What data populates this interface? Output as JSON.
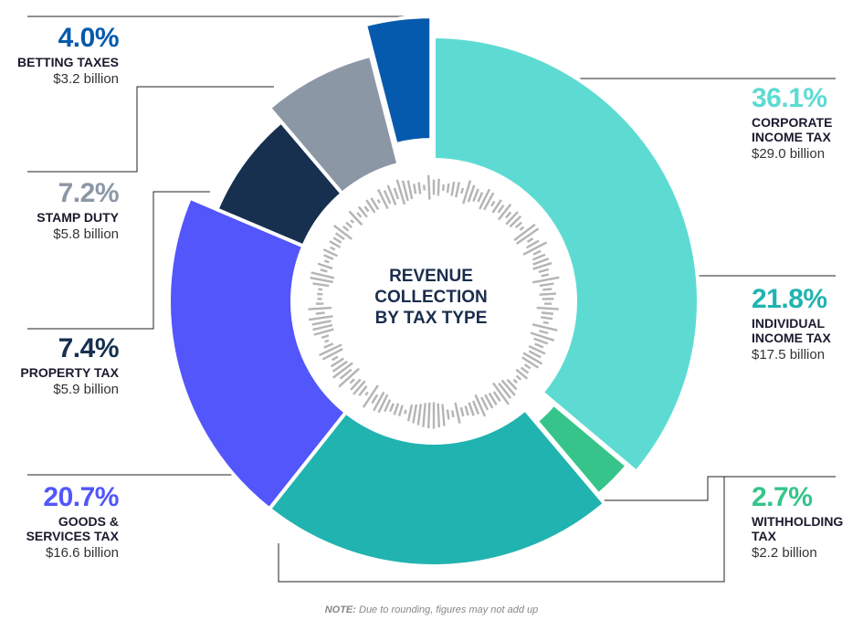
{
  "chart_data": {
    "type": "pie",
    "variant": "donut",
    "center_title_lines": [
      "REVENUE",
      "COLLECTION",
      "BY TAX TYPE"
    ],
    "slices": [
      {
        "key": "corporate",
        "percent": 36.1,
        "percent_label": "36.1%",
        "name_lines": [
          "CORPORATE",
          "INCOME TAX"
        ],
        "amount": 29.0,
        "amount_label": "$29.0 billion",
        "color": "#5ddbd3"
      },
      {
        "key": "withholding",
        "percent": 2.7,
        "percent_label": "2.7%",
        "name_lines": [
          "WITHHOLDING",
          "TAX"
        ],
        "amount": 2.2,
        "amount_label": "$2.2 billion",
        "color": "#36c48a"
      },
      {
        "key": "individual",
        "percent": 21.8,
        "percent_label": "21.8%",
        "name_lines": [
          "INDIVIDUAL",
          "INCOME TAX"
        ],
        "amount": 17.5,
        "amount_label": "$17.5 billion",
        "color": "#21b3b0"
      },
      {
        "key": "gst",
        "percent": 20.7,
        "percent_label": "20.7%",
        "name_lines": [
          "GOODS &",
          "SERVICES TAX"
        ],
        "amount": 16.6,
        "amount_label": "$16.6 billion",
        "color": "#5256fb"
      },
      {
        "key": "property",
        "percent": 7.4,
        "percent_label": "7.4%",
        "name_lines": [
          "PROPERTY TAX"
        ],
        "amount": 5.9,
        "amount_label": "$5.9 billion",
        "color": "#17304f"
      },
      {
        "key": "stamp",
        "percent": 7.2,
        "percent_label": "7.2%",
        "name_lines": [
          "STAMP DUTY"
        ],
        "amount": 5.8,
        "amount_label": "$5.8 billion",
        "color": "#8c97a6"
      },
      {
        "key": "betting",
        "percent": 4.0,
        "percent_label": "4.0%",
        "name_lines": [
          "BETTING TAXES"
        ],
        "amount": 3.2,
        "amount_label": "$3.2 billion",
        "color": "#065aad"
      }
    ]
  },
  "note": {
    "prefix": "NOTE:",
    "text": "Due to rounding, figures may not add up"
  }
}
